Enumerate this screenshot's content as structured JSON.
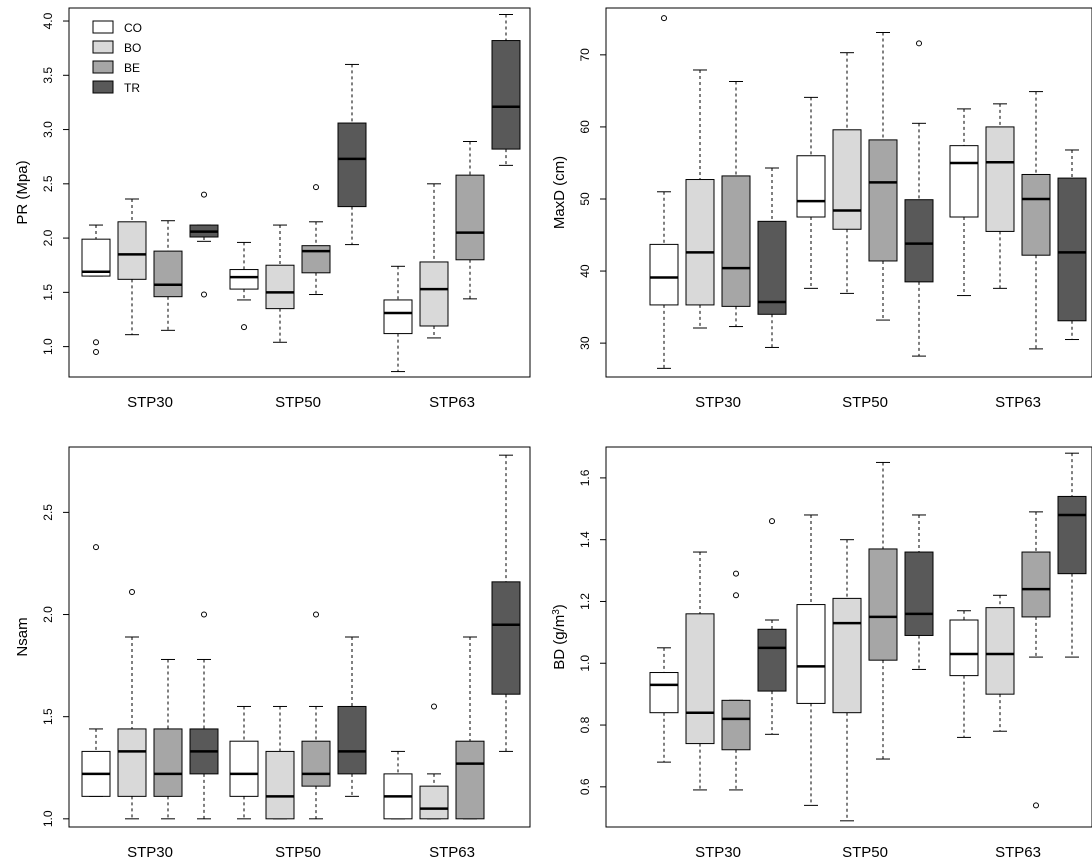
{
  "colors": {
    "CO": "#ffffff",
    "BO": "#d9d9d9",
    "BE": "#a6a6a6",
    "TR": "#595959"
  },
  "chart_data": [
    {
      "type": "boxplot",
      "ylabel": "PR (Mpa)",
      "ylabel_parts": [
        "PR (Mpa)"
      ],
      "yticks": [
        1.0,
        1.5,
        2.0,
        2.5,
        3.0,
        3.5,
        4.0
      ],
      "ylim": [
        0.72,
        4.12
      ],
      "ytick_decimals": 1,
      "categories": [
        "STP30",
        "STP50",
        "STP63"
      ],
      "legend": {
        "position": "top-left",
        "entries": [
          "CO",
          "BO",
          "BE",
          "TR"
        ]
      },
      "series": [
        {
          "name": "CO",
          "boxes": [
            {
              "min": 1.65,
              "q1": 1.65,
              "median": 1.69,
              "q3": 1.99,
              "max": 2.12,
              "outliers": [
                1.04,
                0.95
              ]
            },
            {
              "min": 1.43,
              "q1": 1.53,
              "median": 1.64,
              "q3": 1.71,
              "max": 1.96,
              "outliers": [
                1.18
              ]
            },
            {
              "min": 0.77,
              "q1": 1.12,
              "median": 1.31,
              "q3": 1.43,
              "max": 1.74,
              "outliers": []
            }
          ]
        },
        {
          "name": "BO",
          "boxes": [
            {
              "min": 1.11,
              "q1": 1.62,
              "median": 1.85,
              "q3": 2.15,
              "max": 2.36,
              "outliers": []
            },
            {
              "min": 1.04,
              "q1": 1.35,
              "median": 1.5,
              "q3": 1.75,
              "max": 2.12,
              "outliers": []
            },
            {
              "min": 1.08,
              "q1": 1.19,
              "median": 1.53,
              "q3": 1.78,
              "max": 2.5,
              "outliers": []
            }
          ]
        },
        {
          "name": "BE",
          "boxes": [
            {
              "min": 1.15,
              "q1": 1.46,
              "median": 1.57,
              "q3": 1.88,
              "max": 2.16,
              "outliers": []
            },
            {
              "min": 1.48,
              "q1": 1.68,
              "median": 1.88,
              "q3": 1.93,
              "max": 2.15,
              "outliers": [
                2.47
              ]
            },
            {
              "min": 1.44,
              "q1": 1.8,
              "median": 2.05,
              "q3": 2.58,
              "max": 2.89,
              "outliers": []
            }
          ]
        },
        {
          "name": "TR",
          "boxes": [
            {
              "min": 1.97,
              "q1": 2.01,
              "median": 2.06,
              "q3": 2.12,
              "max": 2.12,
              "outliers": [
                2.4,
                1.48
              ]
            },
            {
              "min": 1.94,
              "q1": 2.29,
              "median": 2.73,
              "q3": 3.06,
              "max": 3.6,
              "outliers": []
            },
            {
              "min": 2.67,
              "q1": 2.82,
              "median": 3.21,
              "q3": 3.82,
              "max": 4.06,
              "outliers": []
            }
          ]
        }
      ]
    },
    {
      "type": "boxplot",
      "ylabel": "MaxD (cm)",
      "ylabel_parts": [
        "MaxD (cm)"
      ],
      "yticks": [
        30,
        40,
        50,
        60,
        70
      ],
      "ylim": [
        25.3,
        76.5
      ],
      "ytick_decimals": 0,
      "categories": [
        "STP30",
        "STP50",
        "STP63"
      ],
      "series": [
        {
          "name": "CO",
          "boxes": [
            {
              "min": 26.5,
              "q1": 35.3,
              "median": 39.1,
              "q3": 43.7,
              "max": 51.0,
              "outliers": [
                75.1
              ]
            },
            {
              "min": 37.6,
              "q1": 47.5,
              "median": 49.7,
              "q3": 56.0,
              "max": 64.1,
              "outliers": []
            },
            {
              "min": 36.6,
              "q1": 47.5,
              "median": 55.0,
              "q3": 57.4,
              "max": 62.5,
              "outliers": []
            }
          ]
        },
        {
          "name": "BO",
          "boxes": [
            {
              "min": 32.1,
              "q1": 35.3,
              "median": 42.6,
              "q3": 52.7,
              "max": 67.9,
              "outliers": []
            },
            {
              "min": 36.9,
              "q1": 45.8,
              "median": 48.4,
              "q3": 59.6,
              "max": 70.3,
              "outliers": []
            },
            {
              "min": 37.6,
              "q1": 45.5,
              "median": 55.1,
              "q3": 60.0,
              "max": 63.2,
              "outliers": []
            }
          ]
        },
        {
          "name": "BE",
          "boxes": [
            {
              "min": 32.3,
              "q1": 35.1,
              "median": 40.4,
              "q3": 53.2,
              "max": 66.3,
              "outliers": []
            },
            {
              "min": 33.2,
              "q1": 41.4,
              "median": 52.3,
              "q3": 58.2,
              "max": 73.1,
              "outliers": []
            },
            {
              "min": 29.2,
              "q1": 42.2,
              "median": 50.0,
              "q3": 53.4,
              "max": 64.9,
              "outliers": []
            }
          ]
        },
        {
          "name": "TR",
          "boxes": [
            {
              "min": 29.4,
              "q1": 34.0,
              "median": 35.7,
              "q3": 46.9,
              "max": 54.3,
              "outliers": []
            },
            {
              "min": 28.2,
              "q1": 38.5,
              "median": 43.8,
              "q3": 49.9,
              "max": 60.5,
              "outliers": [
                71.6
              ]
            },
            {
              "min": 30.5,
              "q1": 33.1,
              "median": 42.6,
              "q3": 52.9,
              "max": 56.8,
              "outliers": []
            }
          ]
        }
      ]
    },
    {
      "type": "boxplot",
      "ylabel": "Nsam",
      "ylabel_parts": [
        "Nsam"
      ],
      "yticks": [
        1.0,
        1.5,
        2.0,
        2.5
      ],
      "ylim": [
        0.96,
        2.82
      ],
      "ytick_decimals": 1,
      "categories": [
        "STP30",
        "STP50",
        "STP63"
      ],
      "series": [
        {
          "name": "CO",
          "boxes": [
            {
              "min": 1.11,
              "q1": 1.11,
              "median": 1.22,
              "q3": 1.33,
              "max": 1.44,
              "outliers": [
                2.33
              ]
            },
            {
              "min": 1.0,
              "q1": 1.11,
              "median": 1.22,
              "q3": 1.38,
              "max": 1.55,
              "outliers": []
            },
            {
              "min": 1.0,
              "q1": 1.0,
              "median": 1.11,
              "q3": 1.22,
              "max": 1.33,
              "outliers": []
            }
          ]
        },
        {
          "name": "BO",
          "boxes": [
            {
              "min": 1.0,
              "q1": 1.11,
              "median": 1.33,
              "q3": 1.44,
              "max": 1.89,
              "outliers": [
                2.11
              ]
            },
            {
              "min": 1.0,
              "q1": 1.0,
              "median": 1.11,
              "q3": 1.33,
              "max": 1.55,
              "outliers": []
            },
            {
              "min": 1.0,
              "q1": 1.0,
              "median": 1.05,
              "q3": 1.16,
              "max": 1.22,
              "outliers": [
                1.55
              ]
            }
          ]
        },
        {
          "name": "BE",
          "boxes": [
            {
              "min": 1.0,
              "q1": 1.11,
              "median": 1.22,
              "q3": 1.44,
              "max": 1.78,
              "outliers": []
            },
            {
              "min": 1.0,
              "q1": 1.16,
              "median": 1.22,
              "q3": 1.38,
              "max": 1.55,
              "outliers": [
                2.0
              ]
            },
            {
              "min": 1.0,
              "q1": 1.0,
              "median": 1.27,
              "q3": 1.38,
              "max": 1.89,
              "outliers": []
            }
          ]
        },
        {
          "name": "TR",
          "boxes": [
            {
              "min": 1.0,
              "q1": 1.22,
              "median": 1.33,
              "q3": 1.44,
              "max": 1.78,
              "outliers": [
                2.0
              ]
            },
            {
              "min": 1.11,
              "q1": 1.22,
              "median": 1.33,
              "q3": 1.55,
              "max": 1.89,
              "outliers": []
            },
            {
              "min": 1.33,
              "q1": 1.61,
              "median": 1.95,
              "q3": 2.16,
              "max": 2.78,
              "outliers": []
            }
          ]
        }
      ]
    },
    {
      "type": "boxplot",
      "ylabel": "BD (g/m³)",
      "ylabel_parts": [
        "BD (g/m",
        "3",
        ")"
      ],
      "yticks": [
        0.6,
        0.8,
        1.0,
        1.2,
        1.4,
        1.6
      ],
      "ylim": [
        0.47,
        1.7
      ],
      "ytick_decimals": 1,
      "categories": [
        "STP30",
        "STP50",
        "STP63"
      ],
      "series": [
        {
          "name": "CO",
          "boxes": [
            {
              "min": 0.68,
              "q1": 0.84,
              "median": 0.93,
              "q3": 0.97,
              "max": 1.05,
              "outliers": []
            },
            {
              "min": 0.54,
              "q1": 0.87,
              "median": 0.99,
              "q3": 1.19,
              "max": 1.48,
              "outliers": []
            },
            {
              "min": 0.76,
              "q1": 0.96,
              "median": 1.03,
              "q3": 1.14,
              "max": 1.17,
              "outliers": []
            }
          ]
        },
        {
          "name": "BO",
          "boxes": [
            {
              "min": 0.59,
              "q1": 0.74,
              "median": 0.84,
              "q3": 1.16,
              "max": 1.36,
              "outliers": []
            },
            {
              "min": 0.49,
              "q1": 0.84,
              "median": 1.13,
              "q3": 1.21,
              "max": 1.4,
              "outliers": []
            },
            {
              "min": 0.78,
              "q1": 0.9,
              "median": 1.03,
              "q3": 1.18,
              "max": 1.22,
              "outliers": []
            }
          ]
        },
        {
          "name": "BE",
          "boxes": [
            {
              "min": 0.59,
              "q1": 0.72,
              "median": 0.82,
              "q3": 0.88,
              "max": 0.88,
              "outliers": [
                1.29,
                1.22
              ]
            },
            {
              "min": 0.69,
              "q1": 1.01,
              "median": 1.15,
              "q3": 1.37,
              "max": 1.65,
              "outliers": []
            },
            {
              "min": 1.02,
              "q1": 1.15,
              "median": 1.24,
              "q3": 1.36,
              "max": 1.49,
              "outliers": [
                0.54
              ]
            }
          ]
        },
        {
          "name": "TR",
          "boxes": [
            {
              "min": 0.77,
              "q1": 0.91,
              "median": 1.05,
              "q3": 1.11,
              "max": 1.14,
              "outliers": [
                1.46
              ]
            },
            {
              "min": 0.98,
              "q1": 1.09,
              "median": 1.16,
              "q3": 1.36,
              "max": 1.48,
              "outliers": []
            },
            {
              "min": 1.02,
              "q1": 1.29,
              "median": 1.48,
              "q3": 1.54,
              "max": 1.68,
              "outliers": []
            }
          ]
        }
      ]
    }
  ]
}
